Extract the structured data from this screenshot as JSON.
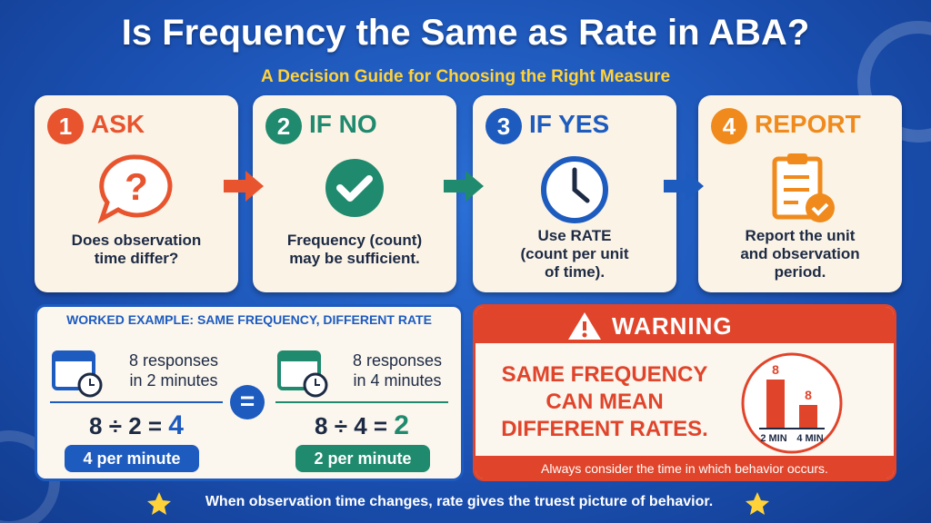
{
  "header": {
    "title": "Is Frequency the Same as Rate in ABA?",
    "subtitle": "A Decision Guide for Choosing the Right Measure"
  },
  "steps": [
    {
      "number": "1",
      "label": "ASK",
      "text": [
        "Does observation",
        "time differ?"
      ]
    },
    {
      "number": "2",
      "label": "IF NO",
      "text": [
        "Frequency (count)",
        "may be sufficient."
      ]
    },
    {
      "number": "3",
      "label": "IF YES",
      "text": [
        "Use RATE",
        "(count per unit",
        "of time)."
      ]
    },
    {
      "number": "4",
      "label": "REPORT",
      "text": [
        "Report the unit",
        "and observation",
        "period."
      ]
    }
  ],
  "example": {
    "heading": "WORKED EXAMPLE: SAME FREQUENCY, DIFFERENT RATE",
    "left": {
      "text": [
        "8 responses",
        "in 2 minutes"
      ],
      "equation": "8 ÷ 2 =",
      "result": "4",
      "rate": "4 per minute"
    },
    "equals": "=",
    "right": {
      "text": [
        "8 responses",
        "in 4 minutes"
      ],
      "equation": "8 ÷ 4 =",
      "result": "2",
      "rate": "2 per minute"
    }
  },
  "warning": {
    "heading": "WARNING",
    "text": [
      "SAME FREQUENCY",
      "CAN MEAN",
      "DIFFERENT RATES."
    ],
    "bars": [
      {
        "label": "2 MIN",
        "value_label": "8"
      },
      {
        "label": "4 MIN",
        "value_label": "8"
      }
    ],
    "note": "Always consider the time in which behavior occurs."
  },
  "footer": "When observation time changes, rate gives the truest picture of behavior."
}
